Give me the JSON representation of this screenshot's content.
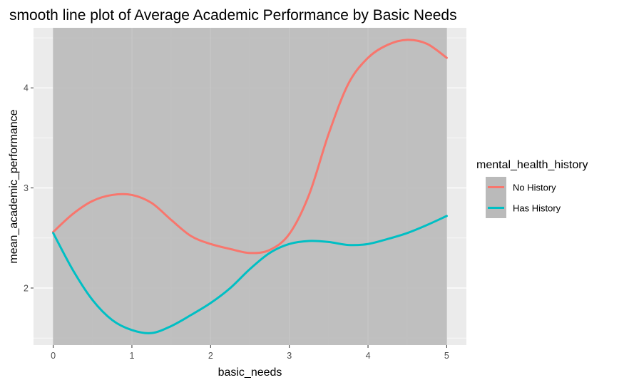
{
  "chart_data": {
    "type": "line",
    "title": "smooth line plot of Average Academic Performance by Basic Needs",
    "xlabel": "basic_needs",
    "ylabel": "mean_academic_performance",
    "xlim": [
      -0.25,
      5.25
    ],
    "ylim": [
      1.43,
      4.6
    ],
    "x_ticks": [
      0,
      1,
      2,
      3,
      4,
      5
    ],
    "y_ticks": [
      2,
      3,
      4
    ],
    "shaded_region": [
      0,
      5
    ],
    "grid": true,
    "legend": {
      "title": "mental_health_history",
      "position": "right"
    },
    "colors": {
      "panel_background": "#ebebeb",
      "shaded_band": "#bababa",
      "grid": "#ffffff"
    },
    "series": [
      {
        "name": "No History",
        "color": "#f8766d",
        "x": [
          0,
          0.25,
          0.5,
          0.75,
          1.0,
          1.25,
          1.5,
          1.75,
          2.0,
          2.25,
          2.5,
          2.75,
          3.0,
          3.25,
          3.5,
          3.75,
          4.0,
          4.25,
          4.5,
          4.75,
          5.0
        ],
        "y": [
          2.56,
          2.74,
          2.87,
          2.93,
          2.93,
          2.85,
          2.68,
          2.52,
          2.44,
          2.39,
          2.35,
          2.38,
          2.54,
          2.93,
          3.54,
          4.04,
          4.3,
          4.43,
          4.48,
          4.44,
          4.3
        ]
      },
      {
        "name": "Has History",
        "color": "#00bfc4",
        "x": [
          0,
          0.25,
          0.5,
          0.75,
          1.0,
          1.25,
          1.5,
          1.75,
          2.0,
          2.25,
          2.5,
          2.75,
          3.0,
          3.25,
          3.5,
          3.75,
          4.0,
          4.25,
          4.5,
          4.75,
          5.0
        ],
        "y": [
          2.55,
          2.18,
          1.88,
          1.68,
          1.58,
          1.55,
          1.62,
          1.73,
          1.85,
          2.0,
          2.19,
          2.35,
          2.44,
          2.47,
          2.46,
          2.43,
          2.44,
          2.49,
          2.55,
          2.63,
          2.72
        ]
      }
    ]
  }
}
